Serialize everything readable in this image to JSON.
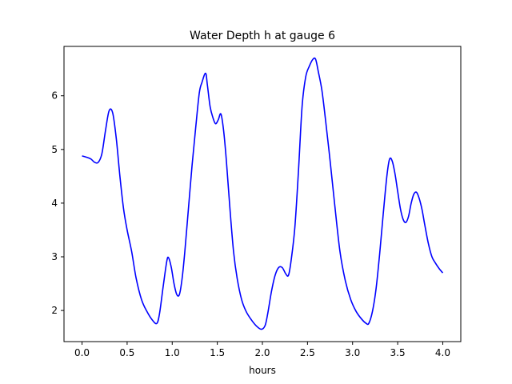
{
  "chart_data": {
    "type": "line",
    "title": "Water Depth h at gauge 6",
    "xlabel": "hours",
    "ylabel": "",
    "xlim": [
      -0.2,
      4.2
    ],
    "ylim": [
      1.42,
      6.92
    ],
    "xticks": [
      0.0,
      0.5,
      1.0,
      1.5,
      2.0,
      2.5,
      3.0,
      3.5,
      4.0
    ],
    "xtick_labels": [
      "0.0",
      "0.5",
      "1.0",
      "1.5",
      "2.0",
      "2.5",
      "3.0",
      "3.5",
      "4.0"
    ],
    "yticks": [
      2,
      3,
      4,
      5,
      6
    ],
    "ytick_labels": [
      "2",
      "3",
      "4",
      "5",
      "6"
    ],
    "grid": false,
    "series": [
      {
        "color": "#0000ff",
        "x": [
          0.0,
          0.06,
          0.1,
          0.14,
          0.18,
          0.22,
          0.26,
          0.3,
          0.34,
          0.38,
          0.42,
          0.46,
          0.5,
          0.55,
          0.6,
          0.66,
          0.72,
          0.78,
          0.83,
          0.86,
          0.9,
          0.94,
          0.96,
          0.99,
          1.02,
          1.05,
          1.08,
          1.11,
          1.14,
          1.18,
          1.22,
          1.26,
          1.3,
          1.33,
          1.37,
          1.39,
          1.42,
          1.45,
          1.48,
          1.51,
          1.54,
          1.57,
          1.6,
          1.64,
          1.68,
          1.72,
          1.77,
          1.82,
          1.88,
          1.94,
          1.99,
          2.03,
          2.06,
          2.1,
          2.14,
          2.18,
          2.22,
          2.26,
          2.29,
          2.32,
          2.36,
          2.4,
          2.44,
          2.48,
          2.52,
          2.56,
          2.59,
          2.62,
          2.66,
          2.7,
          2.75,
          2.8,
          2.86,
          2.92,
          2.98,
          3.04,
          3.1,
          3.15,
          3.18,
          3.22,
          3.26,
          3.3,
          3.34,
          3.38,
          3.41,
          3.44,
          3.47,
          3.5,
          3.53,
          3.56,
          3.59,
          3.62,
          3.65,
          3.68,
          3.71,
          3.74,
          3.77,
          3.8,
          3.84,
          3.88,
          3.92,
          3.96,
          4.0
        ],
        "y": [
          4.88,
          4.85,
          4.82,
          4.76,
          4.76,
          4.92,
          5.35,
          5.72,
          5.68,
          5.2,
          4.5,
          3.9,
          3.5,
          3.1,
          2.6,
          2.2,
          1.98,
          1.82,
          1.76,
          1.95,
          2.45,
          2.92,
          2.98,
          2.8,
          2.5,
          2.3,
          2.3,
          2.6,
          3.1,
          3.9,
          4.7,
          5.4,
          6.05,
          6.25,
          6.42,
          6.2,
          5.8,
          5.6,
          5.48,
          5.55,
          5.66,
          5.35,
          4.8,
          3.9,
          3.1,
          2.6,
          2.2,
          1.98,
          1.82,
          1.7,
          1.65,
          1.72,
          1.95,
          2.35,
          2.65,
          2.8,
          2.8,
          2.68,
          2.66,
          2.95,
          3.55,
          4.6,
          5.8,
          6.35,
          6.55,
          6.68,
          6.68,
          6.45,
          6.1,
          5.55,
          4.8,
          4.0,
          3.1,
          2.55,
          2.2,
          1.98,
          1.84,
          1.76,
          1.76,
          1.98,
          2.4,
          3.05,
          3.8,
          4.5,
          4.82,
          4.78,
          4.55,
          4.22,
          3.9,
          3.7,
          3.64,
          3.75,
          4.0,
          4.17,
          4.2,
          4.08,
          3.88,
          3.6,
          3.25,
          3.0,
          2.88,
          2.78,
          2.7
        ]
      }
    ]
  }
}
